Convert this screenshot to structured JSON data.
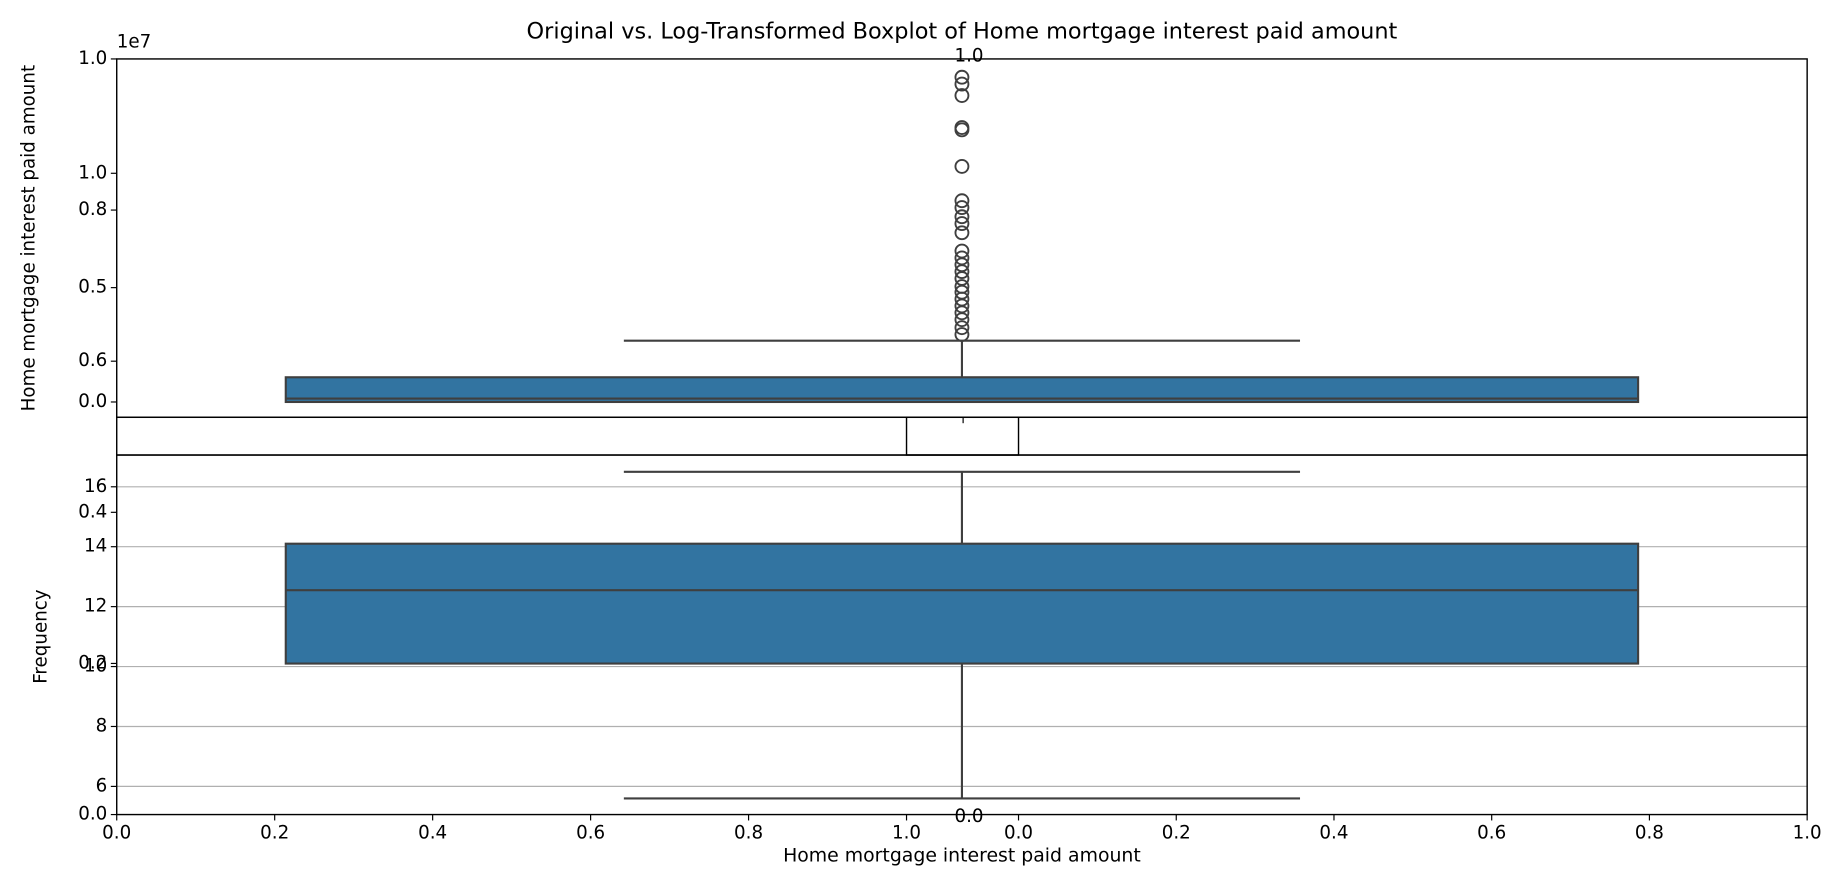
{
  "chart_data": [
    {
      "type": "axes",
      "ylabel": "Frequency",
      "xlabel": "Home mortgage interest paid amount",
      "xlim": [
        0,
        1
      ],
      "xticks": [
        {
          "value": 0,
          "label": "0.0"
        },
        0.2,
        0.4,
        0.6,
        0.8,
        {
          "value": 1,
          "label": "1.0"
        }
      ],
      "ylim": [
        0,
        1
      ],
      "yticks": [
        {
          "value": 0,
          "label": "0.0"
        },
        0.2,
        0.4,
        0.6,
        0.8,
        {
          "value": 1,
          "label": "1.0"
        }
      ]
    },
    {
      "type": "axes",
      "xlim": [
        0,
        1
      ],
      "xticks": [
        {
          "value": 0,
          "label": "0.0"
        },
        0.2,
        0.4,
        0.6,
        0.8,
        {
          "value": 1,
          "label": "1.0"
        }
      ]
    },
    {
      "type": "box",
      "title": "Original vs. Log-Transformed Boxplot of Home mortgage interest paid amount",
      "ylabel": "Home mortgage interest paid amount",
      "offset_label": "1e7",
      "color": "#3274a1",
      "ylim": [
        -0.067,
        1.5
      ],
      "yticks": [
        {
          "value": 0,
          "label": "0.0"
        },
        0.5,
        {
          "value": 1,
          "label": "1.0"
        }
      ],
      "whislo": 0,
      "q1": 0,
      "med": 0.015,
      "q3": 0.108,
      "whishi": 0.268,
      "outliers": [
        1.42,
        1.39,
        1.34,
        1.2,
        1.19,
        1.03,
        0.88,
        0.85,
        0.81,
        0.78,
        0.74,
        0.66,
        0.63,
        0.6,
        0.57,
        0.54,
        0.505,
        0.48,
        0.45,
        0.42,
        0.39,
        0.36,
        0.325,
        0.295
      ]
    },
    {
      "type": "box",
      "color": "#3274a1",
      "grid": true,
      "ylim": [
        5.06,
        17.06
      ],
      "yticks": [
        6,
        8,
        10,
        12,
        14,
        16
      ],
      "whislo": 5.6,
      "q1": 10.1,
      "med": 12.55,
      "q3": 14.1,
      "whishi": 16.5,
      "outliers": []
    },
    {
      "type": "axes",
      "ylim": [
        0,
        1
      ],
      "yticks": [
        {
          "value": 0,
          "label": "0.0"
        },
        {
          "value": 1,
          "label": "1.0"
        }
      ]
    }
  ]
}
